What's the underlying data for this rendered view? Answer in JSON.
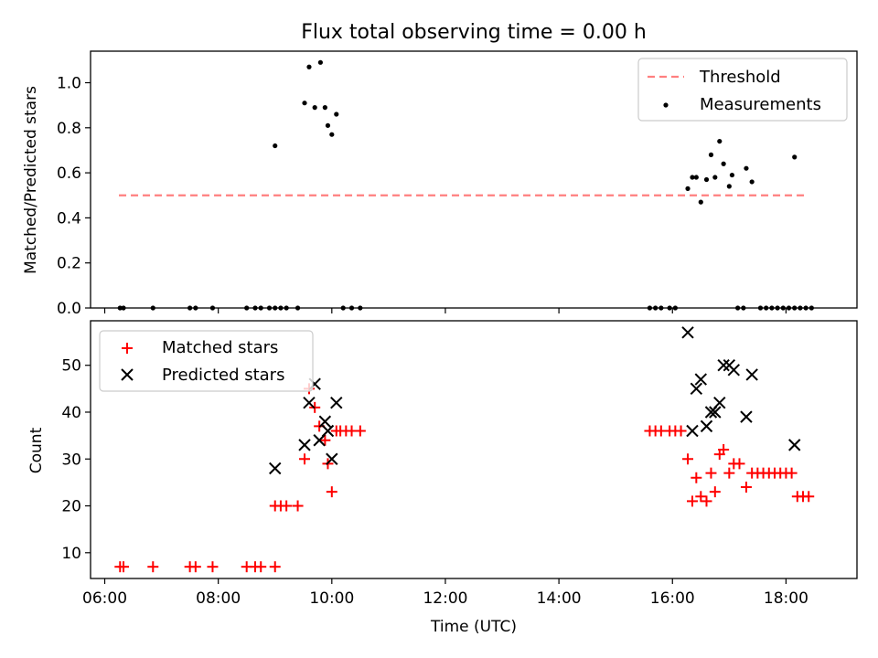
{
  "chart_data": {
    "title": "Flux total observing time = 0.00 h",
    "xlabel": "Time (UTC)",
    "x_unit": "hours UTC",
    "xlim": [
      5.75,
      19.25
    ],
    "x_ticks": [
      {
        "v": 6,
        "label": "06:00"
      },
      {
        "v": 8,
        "label": "08:00"
      },
      {
        "v": 10,
        "label": "10:00"
      },
      {
        "v": 12,
        "label": "12:00"
      },
      {
        "v": 14,
        "label": "14:00"
      },
      {
        "v": 16,
        "label": "16:00"
      },
      {
        "v": 18,
        "label": "18:00"
      }
    ],
    "panels": [
      {
        "type": "scatter",
        "ylabel": "Matched/Predicted stars",
        "ylim": [
          0,
          1.14
        ],
        "y_ticks": [
          {
            "v": 0,
            "label": "0.0"
          },
          {
            "v": 0.2,
            "label": "0.2"
          },
          {
            "v": 0.4,
            "label": "0.4"
          },
          {
            "v": 0.6,
            "label": "0.6"
          },
          {
            "v": 0.8,
            "label": "0.8"
          },
          {
            "v": 1.0,
            "label": "1.0"
          }
        ],
        "legend_position": "top-right",
        "threshold": {
          "name": "Threshold",
          "y": 0.5,
          "x": [
            6.25,
            18.35
          ],
          "color": "#ff7f7f"
        },
        "measurements": {
          "name": "Measurements",
          "color": "#000000",
          "points": [
            [
              6.27,
              0
            ],
            [
              6.33,
              0
            ],
            [
              6.85,
              0
            ],
            [
              7.5,
              0
            ],
            [
              7.6,
              0
            ],
            [
              7.9,
              0
            ],
            [
              8.5,
              0
            ],
            [
              8.65,
              0
            ],
            [
              8.75,
              0
            ],
            [
              8.9,
              0
            ],
            [
              9.0,
              0
            ],
            [
              9.1,
              0
            ],
            [
              9.2,
              0
            ],
            [
              9.4,
              0
            ],
            [
              9.0,
              0.72
            ],
            [
              9.52,
              0.91
            ],
            [
              9.6,
              1.07
            ],
            [
              9.7,
              0.89
            ],
            [
              9.8,
              1.09
            ],
            [
              9.88,
              0.89
            ],
            [
              9.93,
              0.81
            ],
            [
              10.0,
              0.77
            ],
            [
              10.08,
              0.86
            ],
            [
              10.2,
              0
            ],
            [
              10.35,
              0
            ],
            [
              10.5,
              0
            ],
            [
              15.6,
              0
            ],
            [
              15.7,
              0
            ],
            [
              15.8,
              0
            ],
            [
              15.95,
              0
            ],
            [
              16.05,
              0
            ],
            [
              16.27,
              0.53
            ],
            [
              16.35,
              0.58
            ],
            [
              16.42,
              0.58
            ],
            [
              16.5,
              0.47
            ],
            [
              16.6,
              0.57
            ],
            [
              16.68,
              0.68
            ],
            [
              16.75,
              0.58
            ],
            [
              16.83,
              0.74
            ],
            [
              16.9,
              0.64
            ],
            [
              17.0,
              0.54
            ],
            [
              17.05,
              0.59
            ],
            [
              17.3,
              0.62
            ],
            [
              17.4,
              0.56
            ],
            [
              18.15,
              0.67
            ],
            [
              17.15,
              0
            ],
            [
              17.25,
              0
            ],
            [
              17.55,
              0
            ],
            [
              17.65,
              0
            ],
            [
              17.75,
              0
            ],
            [
              17.85,
              0
            ],
            [
              17.95,
              0
            ],
            [
              18.05,
              0
            ],
            [
              18.15,
              0
            ],
            [
              18.25,
              0
            ],
            [
              18.35,
              0
            ],
            [
              18.45,
              0
            ]
          ]
        }
      },
      {
        "type": "scatter",
        "ylabel": "Count",
        "ylim": [
          4.5,
          59.5
        ],
        "y_ticks": [
          {
            "v": 10,
            "label": "10"
          },
          {
            "v": 20,
            "label": "20"
          },
          {
            "v": 30,
            "label": "30"
          },
          {
            "v": 40,
            "label": "40"
          },
          {
            "v": 50,
            "label": "50"
          }
        ],
        "legend_position": "top-left",
        "series": [
          {
            "name": "Matched stars",
            "marker": "plus",
            "color": "#ff0000",
            "points": [
              [
                6.27,
                7
              ],
              [
                6.33,
                7
              ],
              [
                6.85,
                7
              ],
              [
                7.5,
                7
              ],
              [
                7.6,
                7
              ],
              [
                7.9,
                7
              ],
              [
                8.5,
                7
              ],
              [
                8.65,
                7
              ],
              [
                8.75,
                7
              ],
              [
                9.0,
                7
              ],
              [
                9.0,
                20
              ],
              [
                9.1,
                20
              ],
              [
                9.2,
                20
              ],
              [
                9.4,
                20
              ],
              [
                9.52,
                30
              ],
              [
                9.6,
                45
              ],
              [
                9.7,
                41
              ],
              [
                9.78,
                37
              ],
              [
                9.88,
                34
              ],
              [
                9.93,
                29
              ],
              [
                10.0,
                23
              ],
              [
                10.08,
                36
              ],
              [
                10.15,
                36
              ],
              [
                10.25,
                36
              ],
              [
                10.35,
                36
              ],
              [
                10.5,
                36
              ],
              [
                15.6,
                36
              ],
              [
                15.7,
                36
              ],
              [
                15.8,
                36
              ],
              [
                15.95,
                36
              ],
              [
                16.05,
                36
              ],
              [
                16.15,
                36
              ],
              [
                16.27,
                30
              ],
              [
                16.35,
                21
              ],
              [
                16.42,
                26
              ],
              [
                16.5,
                22
              ],
              [
                16.6,
                21
              ],
              [
                16.68,
                27
              ],
              [
                16.75,
                23
              ],
              [
                16.83,
                31
              ],
              [
                16.9,
                32
              ],
              [
                17.0,
                27
              ],
              [
                17.08,
                29
              ],
              [
                17.18,
                29
              ],
              [
                17.3,
                24
              ],
              [
                17.4,
                27
              ],
              [
                17.5,
                27
              ],
              [
                17.6,
                27
              ],
              [
                17.7,
                27
              ],
              [
                17.8,
                27
              ],
              [
                17.9,
                27
              ],
              [
                18.0,
                27
              ],
              [
                18.1,
                27
              ],
              [
                18.2,
                22
              ],
              [
                18.3,
                22
              ],
              [
                18.4,
                22
              ]
            ]
          },
          {
            "name": "Predicted stars",
            "marker": "x",
            "color": "#000000",
            "points": [
              [
                9.0,
                28
              ],
              [
                9.52,
                33
              ],
              [
                9.6,
                42
              ],
              [
                9.7,
                46
              ],
              [
                9.78,
                34
              ],
              [
                9.88,
                38
              ],
              [
                9.93,
                36
              ],
              [
                10.0,
                30
              ],
              [
                10.08,
                42
              ],
              [
                16.27,
                57
              ],
              [
                16.35,
                36
              ],
              [
                16.42,
                45
              ],
              [
                16.5,
                47
              ],
              [
                16.6,
                37
              ],
              [
                16.68,
                40
              ],
              [
                16.75,
                40
              ],
              [
                16.83,
                42
              ],
              [
                16.9,
                50
              ],
              [
                17.0,
                50
              ],
              [
                17.08,
                49
              ],
              [
                17.3,
                39
              ],
              [
                17.4,
                48
              ],
              [
                18.15,
                33
              ]
            ]
          }
        ]
      }
    ]
  }
}
